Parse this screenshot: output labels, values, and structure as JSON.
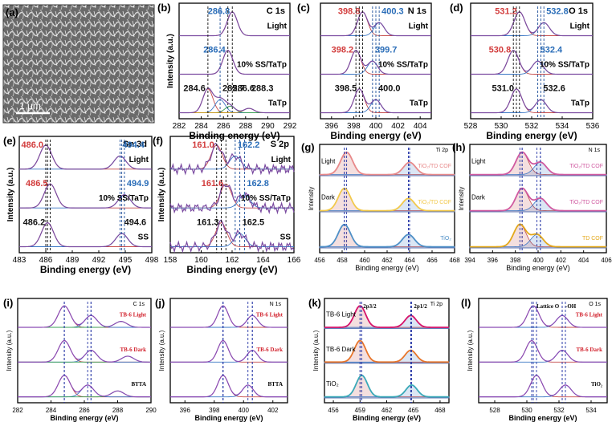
{
  "figure": {
    "panels": [
      {
        "id": "a",
        "tag": "(a)",
        "scale_bar": "1 μm"
      },
      {
        "id": "b",
        "tag": "(b)",
        "element": "C 1s",
        "element_italic": "s",
        "xlabel": "Binding energy (eV)",
        "ylabel": "Intensity (a.u.)",
        "xticks": [
          "282",
          "284",
          "286",
          "288",
          "290",
          "292"
        ],
        "rows": [
          {
            "name": "Light",
            "peaks": [
              {
                "label": "286.8",
                "color": "#2a6db8"
              }
            ]
          },
          {
            "name": "10% SS/TaTp",
            "peaks": [
              {
                "label": "286.4",
                "color": "#2a6db8"
              }
            ]
          },
          {
            "name": "TaTp",
            "peaks": [
              {
                "label": "284.6",
                "color": "#111111"
              },
              {
                "label": "285.7",
                "color": "#111111"
              },
              {
                "label": "286.6",
                "color": "#111111"
              },
              {
                "label": "288.3",
                "color": "#111111"
              }
            ]
          }
        ]
      },
      {
        "id": "c",
        "tag": "(c)",
        "element": "N 1s",
        "xlabel": "Binding energy (eV)",
        "xticks": [
          "396",
          "398",
          "400",
          "402",
          "404"
        ],
        "rows": [
          {
            "name": "Light",
            "peaks": [
              {
                "label": "398.8",
                "color": "#d23c3c"
              },
              {
                "label": "400.3",
                "color": "#2a6db8"
              }
            ]
          },
          {
            "name": "10% SS/TaTp",
            "peaks": [
              {
                "label": "398.2",
                "color": "#d23c3c"
              },
              {
                "label": "399.7",
                "color": "#2a6db8"
              }
            ]
          },
          {
            "name": "TaTp",
            "peaks": [
              {
                "label": "398.5",
                "color": "#111111"
              },
              {
                "label": "400.0",
                "color": "#111111"
              }
            ]
          }
        ]
      },
      {
        "id": "d",
        "tag": "(d)",
        "element": "O 1s",
        "xlabel": "Binding energy (eV)",
        "xticks": [
          "528",
          "530",
          "532",
          "534",
          "536"
        ],
        "rows": [
          {
            "name": "Light",
            "peaks": [
              {
                "label": "531.2",
                "color": "#d23c3c"
              },
              {
                "label": "532.8",
                "color": "#2a6db8"
              }
            ]
          },
          {
            "name": "10% SS/TaTp",
            "peaks": [
              {
                "label": "530.8",
                "color": "#d23c3c"
              },
              {
                "label": "532.4",
                "color": "#2a6db8"
              }
            ]
          },
          {
            "name": "TaTp",
            "peaks": [
              {
                "label": "531.0",
                "color": "#111111"
              },
              {
                "label": "532.6",
                "color": "#111111"
              }
            ]
          }
        ]
      },
      {
        "id": "e",
        "tag": "(e)",
        "element": "Sn 3d",
        "xlabel": "Binding energy (eV)",
        "ylabel": "Intensity (a.u.)",
        "xticks": [
          "483",
          "486",
          "489",
          "492",
          "495",
          "498"
        ],
        "rows": [
          {
            "name": "Light",
            "peaks": [
              {
                "label": "486.0",
                "color": "#d23c3c"
              },
              {
                "label": "494.4",
                "color": "#2a6db8"
              }
            ]
          },
          {
            "name": "10% SS/TaTp",
            "peaks": [
              {
                "label": "486.5",
                "color": "#d23c3c"
              },
              {
                "label": "494.9",
                "color": "#2a6db8"
              }
            ]
          },
          {
            "name": "SS",
            "peaks": [
              {
                "label": "486.2",
                "color": "#111111"
              },
              {
                "label": "494.6",
                "color": "#111111"
              }
            ]
          }
        ]
      },
      {
        "id": "f",
        "tag": "(f)",
        "element": "S 2p",
        "xlabel": "Binding energy (eV)",
        "ylabel": "Intensity (a.u.)",
        "xticks": [
          "158",
          "160",
          "162",
          "164",
          "166"
        ],
        "rows": [
          {
            "name": "Light",
            "peaks": [
              {
                "label": "161.0",
                "color": "#d23c3c"
              },
              {
                "label": "162.2",
                "color": "#2a6db8"
              }
            ]
          },
          {
            "name": "10% SS/TaTp",
            "peaks": [
              {
                "label": "161.6",
                "color": "#d23c3c"
              },
              {
                "label": "162.8",
                "color": "#2a6db8"
              }
            ]
          },
          {
            "name": "SS",
            "peaks": [
              {
                "label": "161.3",
                "color": "#111111"
              },
              {
                "label": "162.5",
                "color": "#111111"
              }
            ]
          }
        ]
      },
      {
        "id": "g",
        "tag": "(g)",
        "element": "Ti 2p",
        "xlabel": "Binding energy (eV)",
        "ylabel": "Intensity",
        "xticks": [
          "456",
          "458",
          "460",
          "462",
          "464",
          "466",
          "468"
        ],
        "rows": [
          {
            "name": "Light",
            "label": "TiO₂/TD COF",
            "color": "#e8898a"
          },
          {
            "name": "Dark",
            "label": "TiO₂/TD COF",
            "color": "#f2c94c"
          },
          {
            "name": "",
            "label": "TiO₂",
            "color": "#4f90c7"
          }
        ]
      },
      {
        "id": "h",
        "tag": "(h)",
        "element": "N 1s",
        "xlabel": "Binding energy (eV)",
        "ylabel": "Intensity",
        "xticks": [
          "394",
          "396",
          "398",
          "400",
          "402",
          "404",
          "406"
        ],
        "rows": [
          {
            "name": "Light",
            "label": "TiO₂/TD COF",
            "color": "#d05aa0"
          },
          {
            "name": "Dark",
            "label": "TiO₂/TD COF",
            "color": "#d05aa0"
          },
          {
            "name": "",
            "label": "TD COF",
            "color": "#e3a81b"
          }
        ]
      },
      {
        "id": "i",
        "tag": "(i)",
        "element": "C 1s",
        "xlabel": "Binding energy (eV)",
        "ylabel": "Intensity (a.u.)",
        "xticks": [
          "282",
          "284",
          "286",
          "288",
          "290"
        ],
        "rows": [
          {
            "name": "TB-6 Light"
          },
          {
            "name": "TB-6 Dark"
          },
          {
            "name": "BTTA"
          }
        ]
      },
      {
        "id": "j",
        "tag": "(j)",
        "element": "N 1s",
        "xlabel": "Binding energy (eV)",
        "ylabel": "Intensity (a.u.)",
        "xticks": [
          "396",
          "398",
          "400",
          "402"
        ],
        "rows": [
          {
            "name": "TB-6 Light"
          },
          {
            "name": "TB-6 Dark"
          },
          {
            "name": "BTTA"
          }
        ]
      },
      {
        "id": "k",
        "tag": "(k)",
        "element": "Ti 2p",
        "xlabel": "Binding energy (eV)",
        "ylabel": "Intensity (a.u.)",
        "xticks": [
          "456",
          "459",
          "462",
          "465",
          "468"
        ],
        "peak_labels": [
          "2p3/2",
          "2p1/2"
        ],
        "rows": [
          {
            "name": "TB-6 Light",
            "color": "#d6136a"
          },
          {
            "name": "TB-6 Dark",
            "color": "#e8752a"
          },
          {
            "name": "TiO₂",
            "color": "#3aa9b8"
          }
        ]
      },
      {
        "id": "l",
        "tag": "(l)",
        "element": "O 1s",
        "xlabel": "Binding energy (eV)",
        "ylabel": "Intensity (a.u.)",
        "xticks": [
          "528",
          "530",
          "532",
          "534"
        ],
        "peak_labels": [
          "Lattice O",
          "-OH"
        ],
        "rows": [
          {
            "name": "TB-6 Light"
          },
          {
            "name": "TB-6 Dark"
          },
          {
            "name": "TiO₂"
          }
        ]
      }
    ]
  },
  "chart_data": [
    {
      "type": "line",
      "panel": "b",
      "title": "C 1s",
      "xlabel": "Binding energy (eV)",
      "ylabel": "Intensity (a.u.)",
      "xlim": [
        282,
        292
      ],
      "series": [
        {
          "name": "Light",
          "peaks": [
            286.8
          ]
        },
        {
          "name": "10% SS/TaTp",
          "peaks": [
            286.4
          ]
        },
        {
          "name": "TaTp",
          "peaks": [
            284.6,
            285.7,
            286.6,
            288.3
          ]
        }
      ]
    },
    {
      "type": "line",
      "panel": "c",
      "title": "N 1s",
      "xlabel": "Binding energy (eV)",
      "xlim": [
        395,
        405
      ],
      "series": [
        {
          "name": "Light",
          "peaks": [
            398.8,
            400.3
          ]
        },
        {
          "name": "10% SS/TaTp",
          "peaks": [
            398.2,
            399.7
          ]
        },
        {
          "name": "TaTp",
          "peaks": [
            398.5,
            400.0
          ]
        }
      ]
    },
    {
      "type": "line",
      "panel": "d",
      "title": "O 1s",
      "xlabel": "Binding energy (eV)",
      "xlim": [
        528,
        536
      ],
      "series": [
        {
          "name": "Light",
          "peaks": [
            531.2,
            532.8
          ]
        },
        {
          "name": "10% SS/TaTp",
          "peaks": [
            530.8,
            532.4
          ]
        },
        {
          "name": "TaTp",
          "peaks": [
            531.0,
            532.6
          ]
        }
      ]
    },
    {
      "type": "line",
      "panel": "e",
      "title": "Sn 3d",
      "xlabel": "Binding energy (eV)",
      "ylabel": "Intensity (a.u.)",
      "xlim": [
        483,
        498
      ],
      "series": [
        {
          "name": "Light",
          "peaks": [
            486.0,
            494.4
          ]
        },
        {
          "name": "10% SS/TaTp",
          "peaks": [
            486.5,
            494.9
          ]
        },
        {
          "name": "SS",
          "peaks": [
            486.2,
            494.6
          ]
        }
      ]
    },
    {
      "type": "line",
      "panel": "f",
      "title": "S 2p",
      "xlabel": "Binding energy (eV)",
      "ylabel": "Intensity (a.u.)",
      "xlim": [
        158,
        166
      ],
      "series": [
        {
          "name": "Light",
          "peaks": [
            161.0,
            162.2
          ]
        },
        {
          "name": "10% SS/TaTp",
          "peaks": [
            161.6,
            162.8
          ]
        },
        {
          "name": "SS",
          "peaks": [
            161.3,
            162.5
          ]
        }
      ]
    },
    {
      "type": "line",
      "panel": "g",
      "title": "Ti 2p",
      "xlabel": "Binding energy (eV)",
      "ylabel": "Intensity",
      "xlim": [
        456,
        468
      ],
      "series": [
        {
          "name": "Light TiO₂/TD COF",
          "peaks": [
            458.4,
            464.0
          ]
        },
        {
          "name": "Dark TiO₂/TD COF",
          "peaks": [
            458.2,
            463.9
          ]
        },
        {
          "name": "TiO₂",
          "peaks": [
            458.2,
            463.9
          ]
        }
      ]
    },
    {
      "type": "line",
      "panel": "h",
      "title": "N 1s",
      "xlabel": "Binding energy (eV)",
      "ylabel": "Intensity",
      "xlim": [
        394,
        406
      ],
      "series": [
        {
          "name": "Light TiO₂/TD COF",
          "peaks": [
            398.6,
            400.2
          ]
        },
        {
          "name": "Dark TiO₂/TD COF",
          "peaks": [
            398.6,
            400.2
          ]
        },
        {
          "name": "TD COF",
          "peaks": [
            398.4,
            399.9
          ]
        }
      ]
    },
    {
      "type": "line",
      "panel": "i",
      "title": "C 1s",
      "xlabel": "Binding energy (eV)",
      "ylabel": "Intensity (a.u.)",
      "xlim": [
        282,
        290
      ],
      "series": [
        {
          "name": "TB-6 Light",
          "peaks": [
            284.8,
            286.4,
            288.2
          ]
        },
        {
          "name": "TB-6 Dark",
          "peaks": [
            284.8,
            286.4,
            288.6
          ]
        },
        {
          "name": "BTTA",
          "peaks": [
            284.8,
            286.2,
            288.0
          ]
        }
      ]
    },
    {
      "type": "line",
      "panel": "j",
      "title": "N 1s",
      "xlabel": "Binding energy (eV)",
      "ylabel": "Intensity (a.u.)",
      "xlim": [
        395,
        403
      ],
      "series": [
        {
          "name": "TB-6 Light",
          "peaks": [
            398.6,
            400.6
          ]
        },
        {
          "name": "TB-6 Dark",
          "peaks": [
            398.6,
            400.6
          ]
        },
        {
          "name": "BTTA",
          "peaks": [
            398.6,
            400.3
          ]
        }
      ]
    },
    {
      "type": "line",
      "panel": "k",
      "title": "Ti 2p",
      "xlabel": "Binding energy (eV)",
      "ylabel": "Intensity (a.u.)",
      "xlim": [
        455,
        469
      ],
      "series": [
        {
          "name": "TB-6 Light",
          "peaks": [
            459.0,
            464.7
          ]
        },
        {
          "name": "TB-6 Dark",
          "peaks": [
            459.0,
            464.7
          ]
        },
        {
          "name": "TiO₂",
          "peaks": [
            459.2,
            464.8
          ]
        }
      ]
    },
    {
      "type": "line",
      "panel": "l",
      "title": "O 1s",
      "xlabel": "Binding energy (eV)",
      "ylabel": "Intensity (a.u.)",
      "xlim": [
        527,
        535
      ],
      "series": [
        {
          "name": "TB-6 Light",
          "peaks": [
            530.4,
            532.2
          ]
        },
        {
          "name": "TB-6 Dark",
          "peaks": [
            530.3,
            532.2
          ]
        },
        {
          "name": "TiO₂",
          "peaks": [
            530.6,
            532.4
          ]
        }
      ]
    }
  ]
}
